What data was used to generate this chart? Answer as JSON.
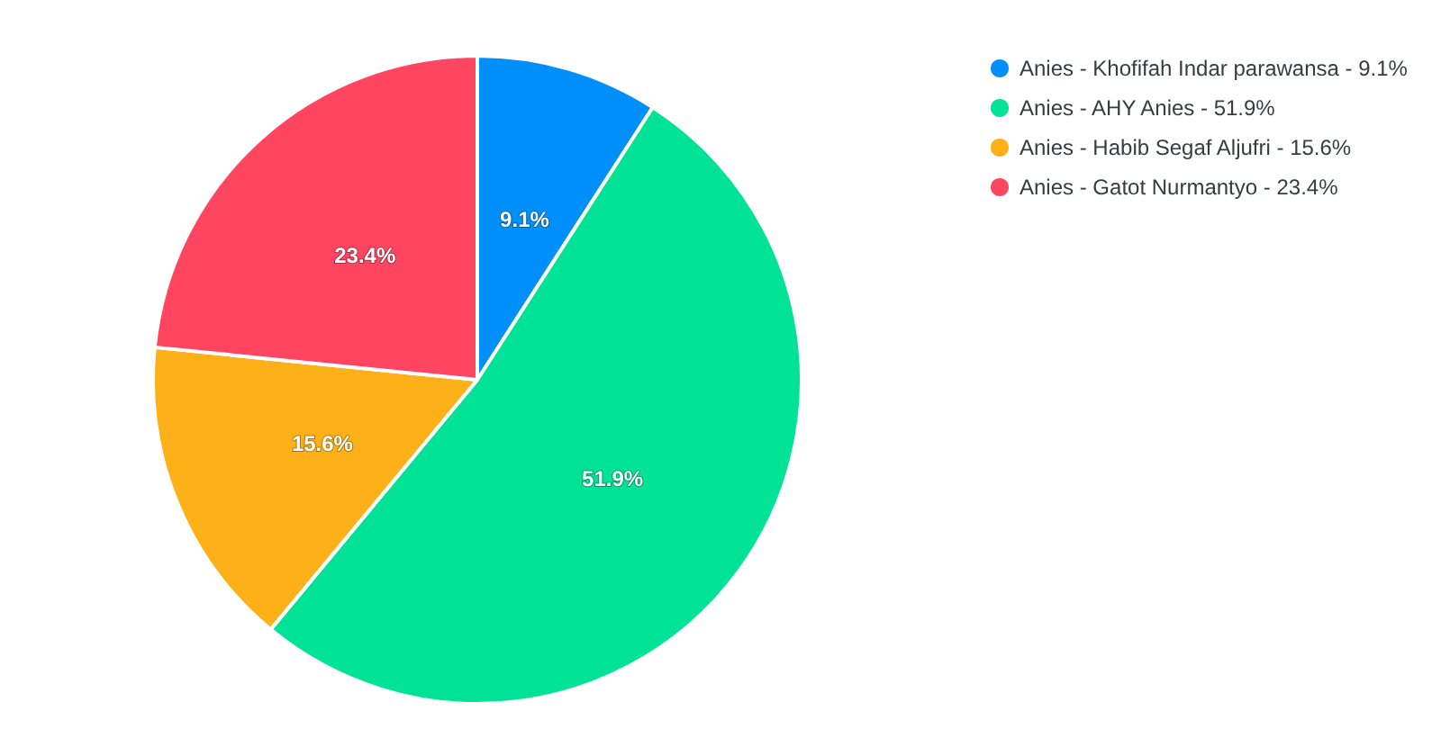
{
  "chart_data": {
    "type": "pie",
    "categories": [
      "Anies - Khofifah Indar parawansa - 9.1%",
      "Anies - AHY Anies - 51.9%",
      "Anies - Habib Segaf Aljufri - 15.6%",
      "Anies - Gatot Nurmantyo - 23.4%"
    ],
    "values": [
      9.1,
      51.9,
      15.6,
      23.4
    ],
    "colors": [
      "#008ffb",
      "#00e396",
      "#feb019",
      "#ff4560"
    ],
    "value_labels": [
      "9.1%",
      "51.9%",
      "15.6%",
      "23.4%"
    ],
    "legend": "top right"
  }
}
